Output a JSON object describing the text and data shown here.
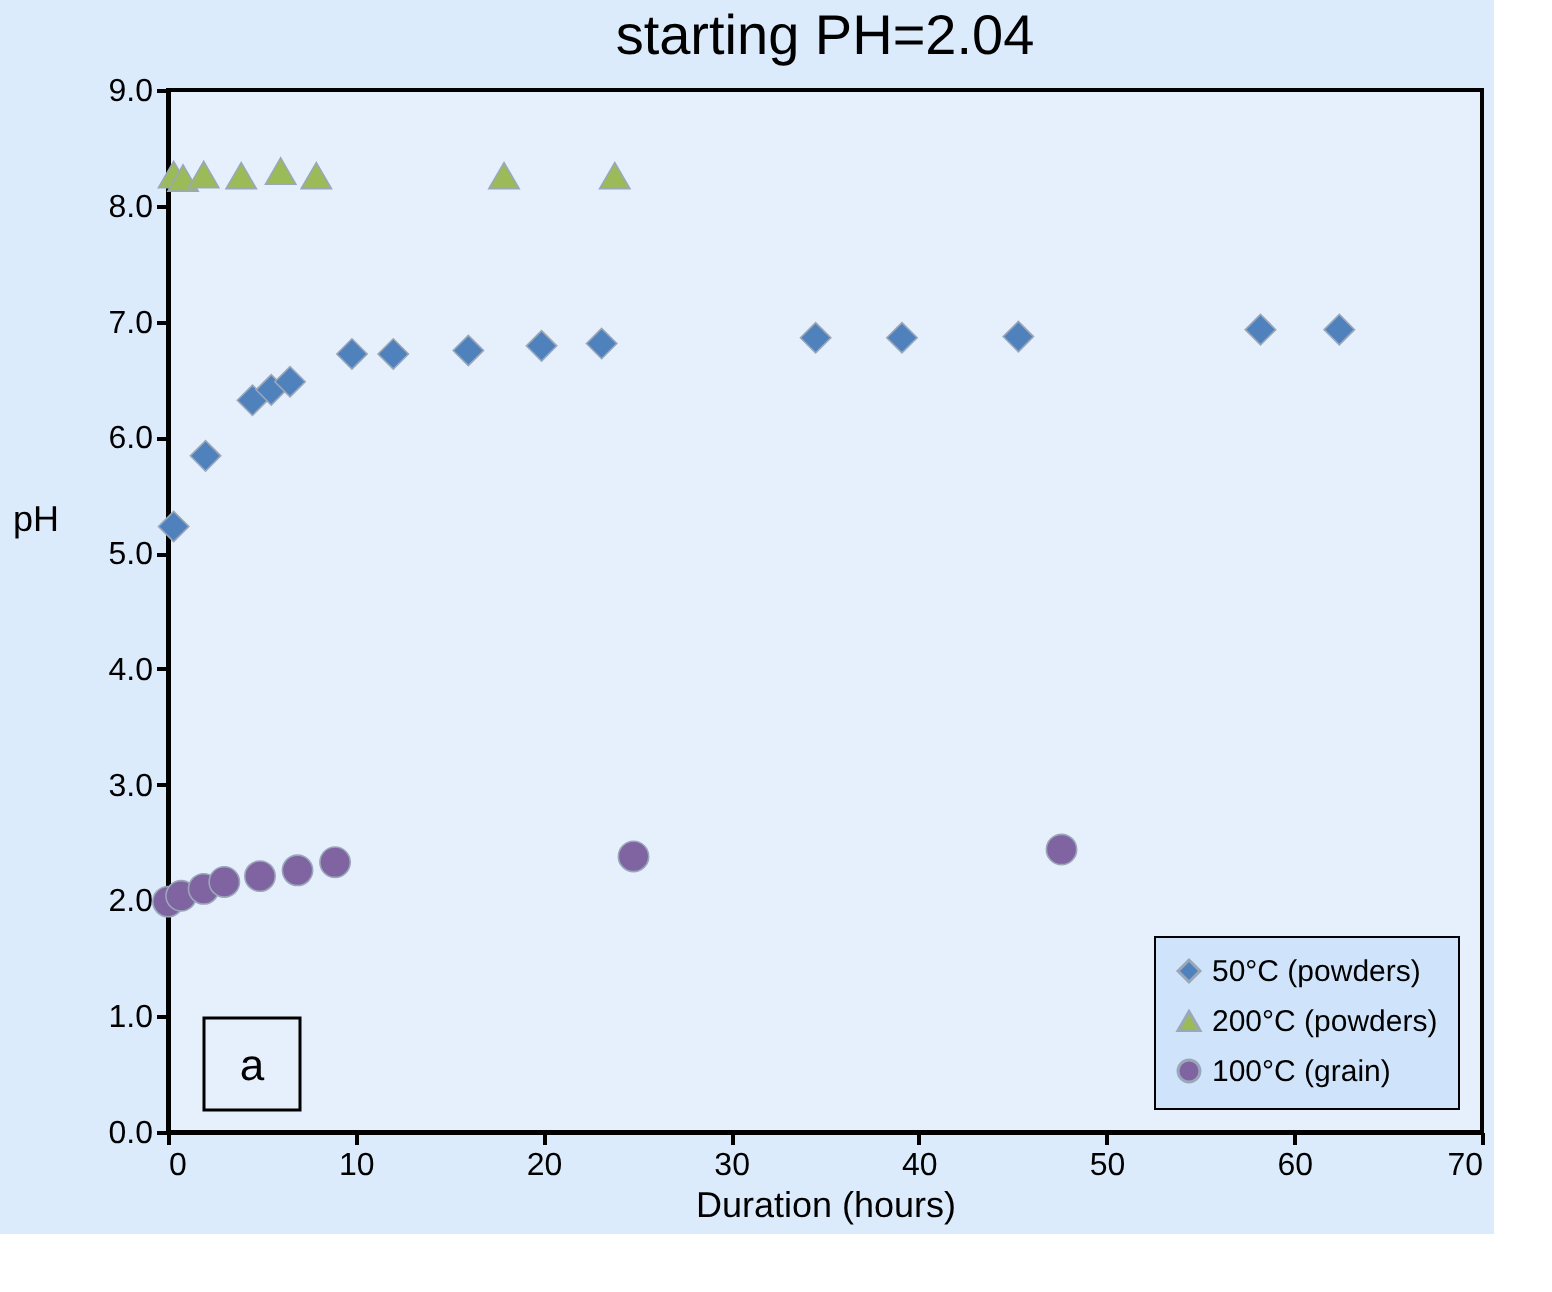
{
  "chart_data": {
    "type": "scatter",
    "title": "starting PH=2.04",
    "xlabel": "Duration (hours)",
    "ylabel": "pH",
    "xlim": [
      0,
      70
    ],
    "xticks": [
      0,
      10,
      20,
      30,
      40,
      50,
      60,
      70
    ],
    "ylim": [
      0,
      9
    ],
    "yticks": [
      {
        "value": 0,
        "label": "0.0"
      },
      {
        "value": 1,
        "label": "1.0"
      },
      {
        "value": 2,
        "label": "2.0"
      },
      {
        "value": 3,
        "label": "3.0"
      },
      {
        "value": 4,
        "label": "4.0"
      },
      {
        "value": 5,
        "label": "5.0"
      },
      {
        "value": 6,
        "label": "6.0"
      },
      {
        "value": 7,
        "label": "7.0"
      },
      {
        "value": 8,
        "label": "8.0"
      },
      {
        "value": 9,
        "label": "9.0"
      }
    ],
    "grid": false,
    "legend": "bottom right",
    "annotations": [
      "a"
    ],
    "series": [
      {
        "name": "50°C (powders)",
        "color": "#4f81bd",
        "marker": "diamond",
        "x": [
          0.3,
          2.0,
          4.5,
          5.5,
          6.5,
          9.8,
          12.0,
          16.0,
          19.9,
          23.1,
          34.5,
          39.1,
          45.3,
          58.2,
          62.4
        ],
        "values": [
          5.23,
          5.84,
          6.32,
          6.41,
          6.48,
          6.72,
          6.72,
          6.75,
          6.79,
          6.81,
          6.86,
          6.86,
          6.87,
          6.93,
          6.93
        ]
      },
      {
        "name": "200°C (powders)",
        "color": "#9bbb59",
        "marker": "triangle",
        "x": [
          0.3,
          0.8,
          1.9,
          3.9,
          6.0,
          7.9,
          17.9,
          23.8
        ],
        "values": [
          8.27,
          8.24,
          8.27,
          8.26,
          8.3,
          8.26,
          8.26,
          8.26
        ]
      },
      {
        "name": "100°C (grain)",
        "color": "#8064a2",
        "marker": "circle",
        "x": [
          0,
          0.7,
          1.9,
          3.0,
          4.9,
          6.9,
          8.9,
          24.8,
          47.6
        ],
        "values": [
          1.99,
          2.04,
          2.1,
          2.16,
          2.21,
          2.26,
          2.33,
          2.38,
          2.44
        ]
      }
    ]
  }
}
